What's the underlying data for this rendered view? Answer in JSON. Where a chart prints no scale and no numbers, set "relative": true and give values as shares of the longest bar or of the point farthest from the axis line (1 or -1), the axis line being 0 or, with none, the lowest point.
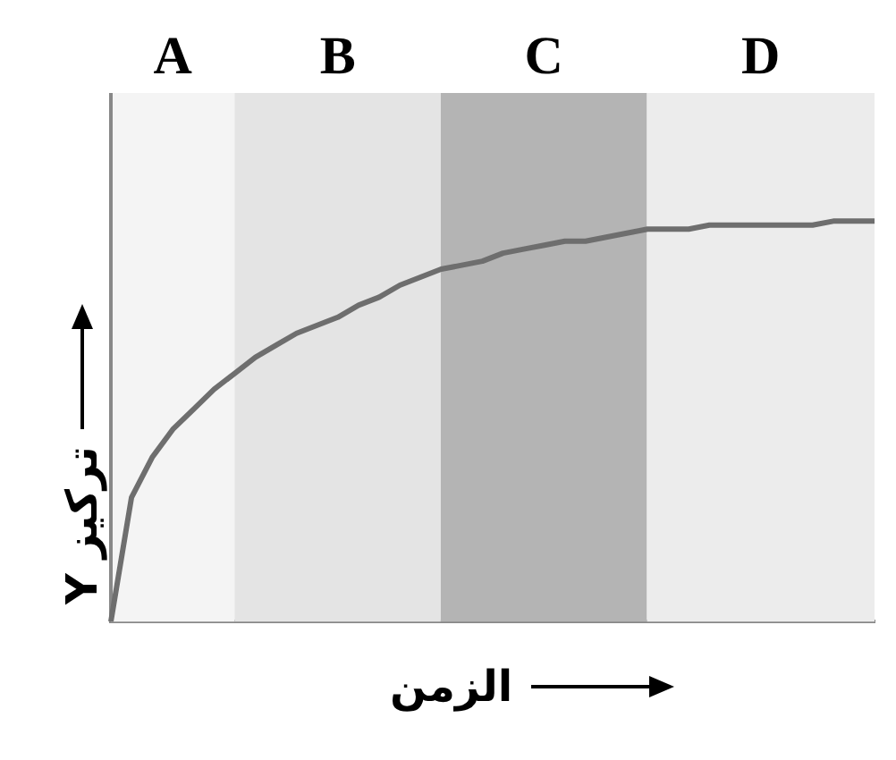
{
  "chart_data": {
    "type": "line",
    "relative": true,
    "xlabel": "الزمن",
    "ylabel": "تركيز Y",
    "marker": "none",
    "line_style": "solid",
    "categories": [
      null,
      null,
      null,
      null,
      null,
      null,
      null,
      null,
      null,
      null,
      null,
      null,
      null,
      null,
      null,
      null,
      null,
      null,
      null,
      null,
      null,
      null,
      null,
      null,
      null,
      null,
      null,
      null,
      null,
      null,
      null,
      null,
      null,
      null,
      null,
      null,
      null,
      null
    ],
    "series": [
      {
        "color": "#6e6e6e",
        "values": [
          0,
          0.31,
          0.41,
          0.48,
          0.53,
          0.58,
          0.62,
          0.66,
          0.69,
          0.72,
          0.74,
          0.76,
          0.79,
          0.81,
          0.84,
          0.86,
          0.88,
          0.89,
          0.9,
          0.92,
          0.93,
          0.94,
          0.95,
          0.95,
          0.96,
          0.97,
          0.98,
          0.98,
          0.98,
          0.99,
          0.99,
          0.99,
          0.99,
          0.99,
          0.99,
          1,
          1,
          1
        ]
      }
    ],
    "annotations": [
      "A",
      "B",
      "C",
      "D"
    ]
  }
}
